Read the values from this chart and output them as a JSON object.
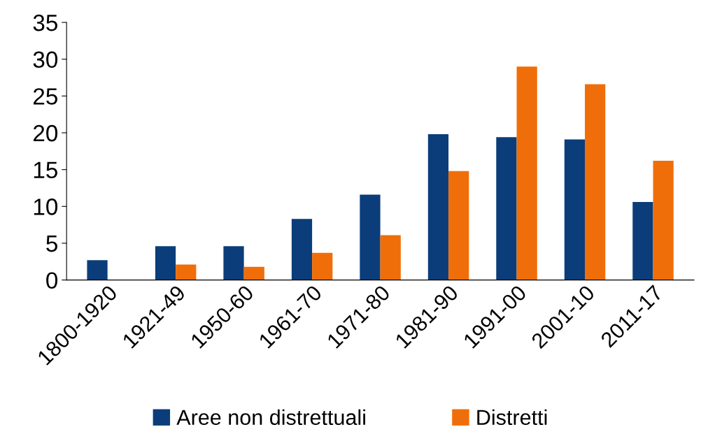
{
  "chart_data": {
    "type": "bar",
    "categories": [
      "1800-1920",
      "1921-49",
      "1950-60",
      "1961-70",
      "1971-80",
      "1981-90",
      "1991-00",
      "2001-10",
      "2011-17"
    ],
    "series": [
      {
        "name": "Aree non distrettuali",
        "color": "#0a3d7a",
        "values": [
          2.7,
          4.6,
          4.6,
          8.3,
          11.6,
          19.8,
          19.4,
          19.1,
          10.6
        ]
      },
      {
        "name": "Distretti",
        "color": "#f06e0a",
        "values": [
          0,
          2.1,
          1.8,
          3.7,
          6.1,
          14.8,
          29.0,
          26.6,
          16.2
        ]
      }
    ],
    "ylim": [
      0,
      35
    ],
    "yticks": [
      0,
      5,
      10,
      15,
      20,
      25,
      30,
      35
    ],
    "grid": false,
    "legend": "bottom"
  }
}
